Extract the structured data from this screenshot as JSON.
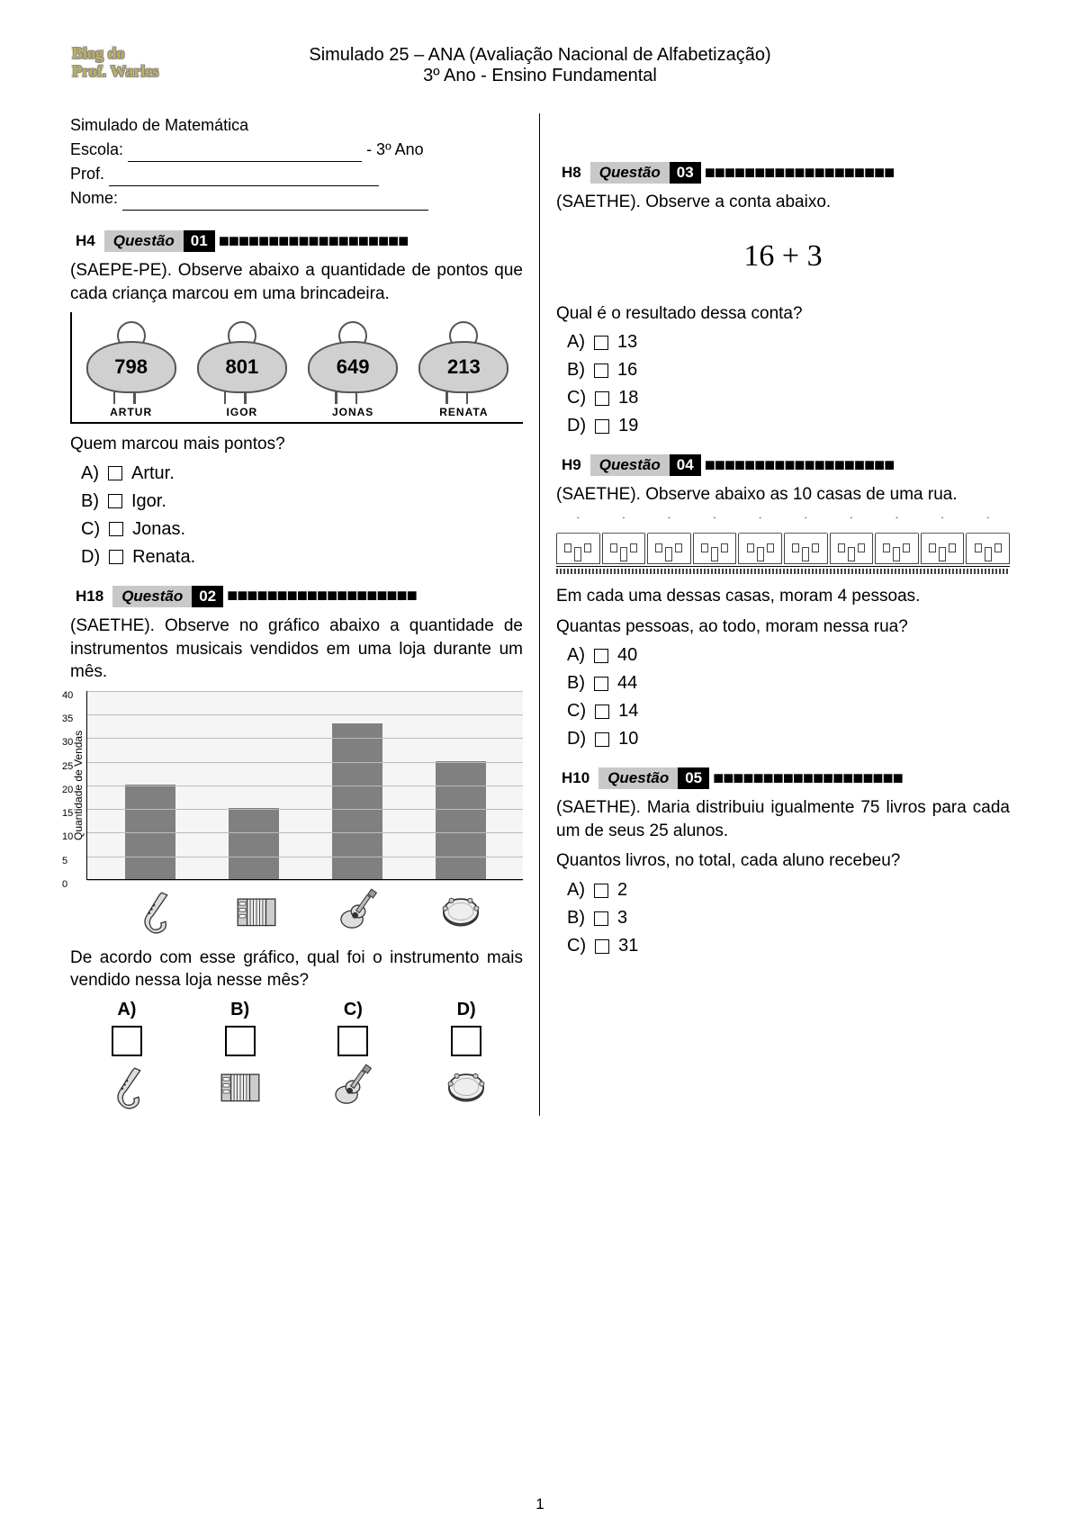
{
  "logo": {
    "line1": "Blog do",
    "line2": "Prof. Warles"
  },
  "header": {
    "title": "Simulado 25 – ANA (Avaliação Nacional de Alfabetização)",
    "subtitle": "3º Ano - Ensino Fundamental"
  },
  "info": {
    "l1": "Simulado de Matemática",
    "escola": "Escola:",
    "ano": "- 3º Ano",
    "prof": "Prof.",
    "nome": "Nome:"
  },
  "qlabel": "Questão",
  "dashes": "■■■■■■■■■■■■■■■■■■■",
  "q1": {
    "h": "H4",
    "num": "01",
    "text": "(SAEPE-PE). Observe abaixo a quantidade de pontos que cada criança marcou em uma brincadeira.",
    "kids": [
      {
        "name": "ARTUR",
        "score": "798"
      },
      {
        "name": "IGOR",
        "score": "801"
      },
      {
        "name": "JONAS",
        "score": "649"
      },
      {
        "name": "RENATA",
        "score": "213"
      }
    ],
    "ask": "Quem marcou mais pontos?",
    "opts": [
      {
        "l": "A)",
        "t": "Artur."
      },
      {
        "l": "B)",
        "t": "Igor."
      },
      {
        "l": "C)",
        "t": "Jonas."
      },
      {
        "l": "D)",
        "t": "Renata."
      }
    ]
  },
  "q2": {
    "h": "H18",
    "num": "02",
    "text": "(SAETHE). Observe no gráfico abaixo a quantidade de instrumentos musicais vendidos em uma loja durante um mês.",
    "chart": {
      "ylabel": "Quantidade de Vendas",
      "ymax": 40,
      "ystep": 5,
      "ticks": [
        "0",
        "5",
        "10",
        "15",
        "20",
        "25",
        "30",
        "35",
        "40"
      ],
      "values": [
        20,
        15,
        33,
        25
      ],
      "bar_color": "#808080",
      "grid_color": "#bbbbbb",
      "bg_color": "#f5f5f5",
      "icons": [
        "sax",
        "accordion",
        "guitar",
        "tambourine"
      ]
    },
    "ask": "De acordo com esse gráfico, qual foi o instrumento mais vendido nessa loja nesse mês?",
    "answers": [
      {
        "l": "A)",
        "icon": "sax"
      },
      {
        "l": "B)",
        "icon": "accordion"
      },
      {
        "l": "C)",
        "icon": "guitar"
      },
      {
        "l": "D)",
        "icon": "tambourine"
      }
    ]
  },
  "q3": {
    "h": "H8",
    "num": "03",
    "text": "(SAETHE). Observe a conta abaixo.",
    "expr": "16 + 3",
    "ask": "Qual é o resultado dessa conta?",
    "opts": [
      {
        "l": "A)",
        "t": "13"
      },
      {
        "l": "B)",
        "t": "16"
      },
      {
        "l": "C)",
        "t": "18"
      },
      {
        "l": "D)",
        "t": "19"
      }
    ]
  },
  "q4": {
    "h": "H9",
    "num": "04",
    "text": "(SAETHE). Observe abaixo as 10 casas de uma rua.",
    "house_count": 10,
    "text2": "Em cada uma dessas casas, moram 4 pessoas.",
    "ask": "Quantas pessoas, ao todo, moram nessa rua?",
    "opts": [
      {
        "l": "A)",
        "t": "40"
      },
      {
        "l": "B)",
        "t": "44"
      },
      {
        "l": "C)",
        "t": "14"
      },
      {
        "l": "D)",
        "t": "10"
      }
    ]
  },
  "q5": {
    "h": "H10",
    "num": "05",
    "text": "(SAETHE). Maria distribuiu igualmente 75 livros para cada um de seus 25 alunos.",
    "ask": "Quantos livros, no total, cada aluno recebeu?",
    "opts": [
      {
        "l": "A)",
        "t": "2"
      },
      {
        "l": "B)",
        "t": "3"
      },
      {
        "l": "C)",
        "t": "31"
      }
    ]
  },
  "pagenum": "1"
}
